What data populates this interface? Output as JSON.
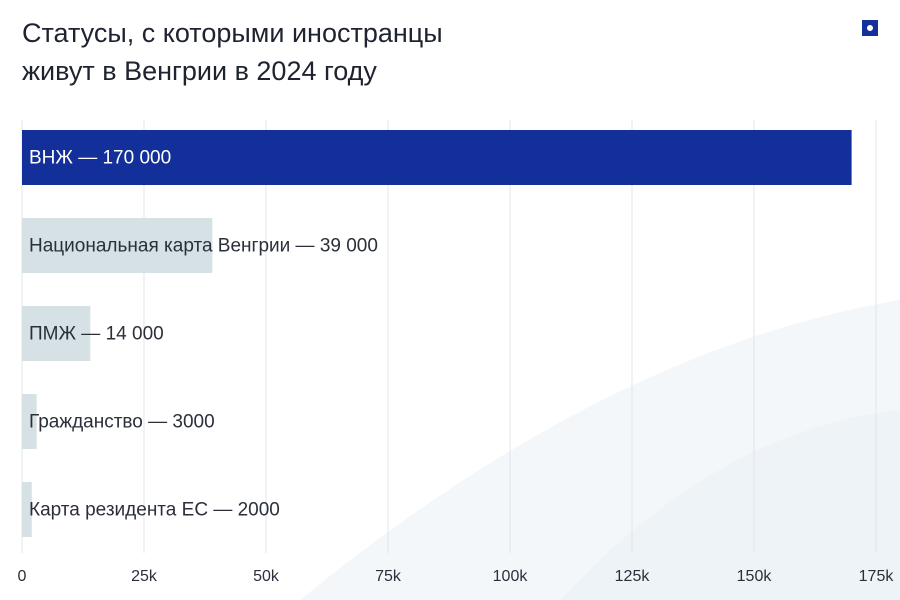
{
  "header": {
    "title_line1": "Статусы, с которыми иностранцы",
    "title_line2": "живут в Венгрии в 2024 году"
  },
  "brand": {
    "icon": "square-dot-logo-icon",
    "color": "#13309a"
  },
  "colors": {
    "highlight": "#13309a",
    "bar": "#d6e1e5",
    "grid": "#e1e6eb",
    "axis_text": "#2a2f3a",
    "label_dark": "#2a2f3a",
    "label_light": "#ffffff"
  },
  "chart_data": {
    "type": "bar",
    "orientation": "horizontal",
    "title": "Статусы, с которыми иностранцы живут в Венгрии в 2024 году",
    "categories": [
      "ВНЖ",
      "Национальная карта Венгрии",
      "ПМЖ",
      "Гражданство",
      "Карта резидента ЕС"
    ],
    "values": [
      170000,
      39000,
      14000,
      3000,
      2000
    ],
    "bar_labels": [
      "ВНЖ — 170 000",
      "Национальная карта Венгрии — 39 000",
      "ПМЖ — 14 000",
      "Гражданство — 3000",
      "Карта резидента ЕС — 2000"
    ],
    "highlight_index": 0,
    "xlim": [
      0,
      175000
    ],
    "xticks": [
      0,
      25000,
      50000,
      75000,
      100000,
      125000,
      150000,
      175000
    ],
    "xtick_labels": [
      "0",
      "25k",
      "50k",
      "75k",
      "100k",
      "125k",
      "150k",
      "175k"
    ],
    "grid": true,
    "legend": "none"
  }
}
